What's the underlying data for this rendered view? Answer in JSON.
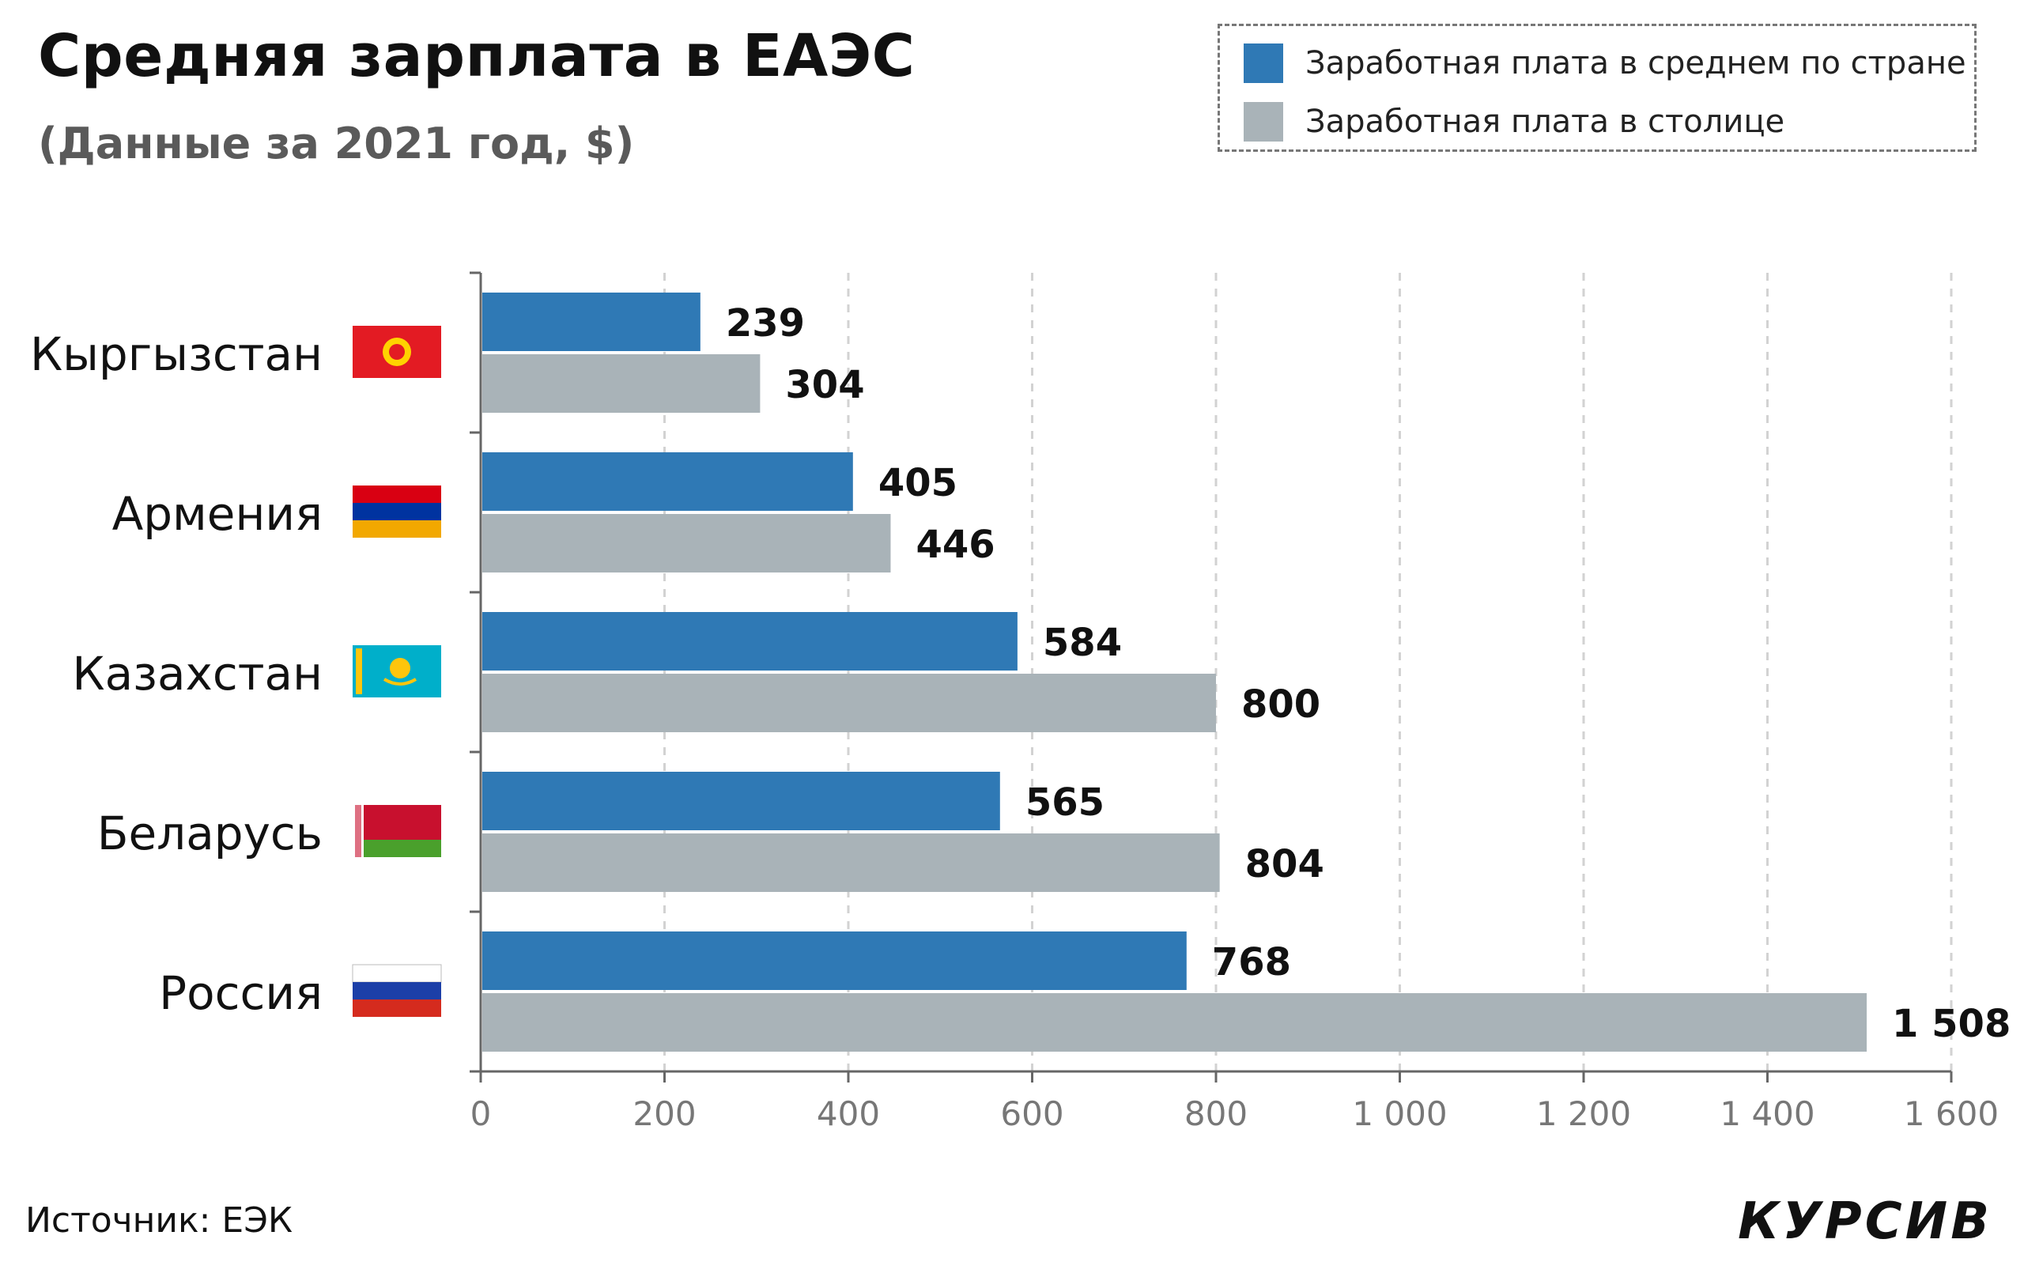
{
  "header": {
    "title": "Средняя зарплата в ЕАЭС",
    "subtitle": "(Данные за 2021 год, $)"
  },
  "legend": [
    {
      "label": "Заработная плата в среднем по стране",
      "color": "#2f79b5"
    },
    {
      "label": "Заработная плата в столице",
      "color": "#a9b3b8"
    }
  ],
  "chart_data": {
    "type": "bar",
    "orientation": "horizontal",
    "title": "Средняя зарплата в ЕАЭС",
    "subtitle": "(Данные за 2021 год, $)",
    "categories": [
      "Кыргызстан",
      "Армения",
      "Казахстан",
      "Беларусь",
      "Россия"
    ],
    "series": [
      {
        "name": "Заработная плата в среднем по стране",
        "color": "#2f79b5",
        "values": [
          239,
          405,
          584,
          565,
          768
        ]
      },
      {
        "name": "Заработная плата в столице",
        "color": "#a9b3b8",
        "values": [
          304,
          446,
          800,
          804,
          1508
        ]
      }
    ],
    "value_labels": [
      [
        "239",
        "405",
        "584",
        "565",
        "768"
      ],
      [
        "304",
        "446",
        "800",
        "804",
        "1 508"
      ]
    ],
    "xlim": [
      0,
      1600
    ],
    "xticks": [
      0,
      200,
      400,
      600,
      800,
      1000,
      1200,
      1400,
      1600
    ],
    "xtick_labels": [
      "0",
      "200",
      "400",
      "600",
      "800",
      "1 000",
      "1 200",
      "1 400",
      "1 600"
    ],
    "grid": "vertical dashed",
    "legend_position": "top-right",
    "flags": [
      "kyrgyzstan-flag",
      "armenia-flag",
      "kazakhstan-flag",
      "belarus-flag",
      "russia-flag"
    ]
  },
  "footer": {
    "source": "Источник: ЕЭК",
    "logo": "КУРСИВ"
  }
}
